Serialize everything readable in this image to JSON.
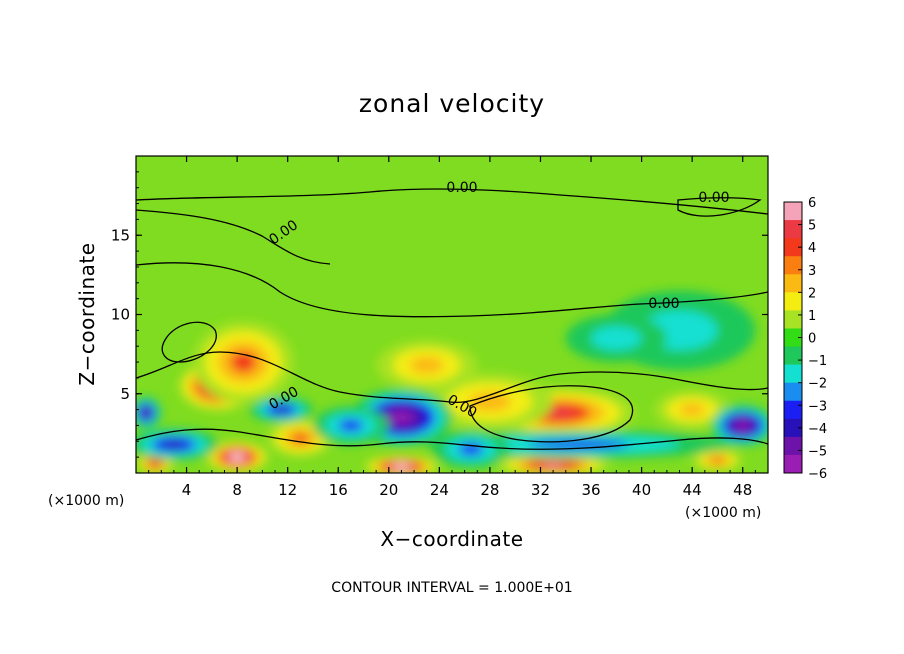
{
  "chart_data": {
    "type": "heatmap",
    "title": "zonal velocity",
    "xlabel": "X−coordinate",
    "ylabel": "Z−coordinate",
    "x_unit": "(×1000 m)",
    "y_unit": "(×1000 m)",
    "xlim": [
      0,
      50
    ],
    "ylim": [
      0,
      20
    ],
    "x_ticks": [
      4,
      8,
      12,
      16,
      20,
      24,
      28,
      32,
      36,
      40,
      44,
      48
    ],
    "y_ticks": [
      5,
      10,
      15
    ],
    "x_tick_labels": [
      "4",
      "8",
      "12",
      "16",
      "20",
      "24",
      "28",
      "32",
      "36",
      "40",
      "44",
      "48"
    ],
    "y_tick_labels": [
      "5",
      "10",
      "15"
    ],
    "colorbar": {
      "range": [
        -6,
        6
      ],
      "ticks": [
        "6",
        "5",
        "4",
        "3",
        "2",
        "1",
        "0",
        "−1",
        "−2",
        "−3",
        "−4",
        "−5",
        "−6"
      ],
      "colors": [
        "#f4a3b8",
        "#ec3a45",
        "#f3391b",
        "#fa7f10",
        "#fbb914",
        "#f4ed12",
        "#a7e224",
        "#33dd16",
        "#1ec85a",
        "#14e0d2",
        "#1a8ef0",
        "#1c1ff4",
        "#2811b8",
        "#6e13aa",
        "#9a1eb4"
      ],
      "high_color": "#ffffff"
    },
    "contour_labels": [
      "0.00",
      "0.00",
      "0.00",
      "0.00",
      "0.00",
      "0.00"
    ],
    "features": [
      {
        "kind": "max",
        "x": 6.5,
        "z": 5.5,
        "value": 7,
        "rx": 3.2,
        "rz": 1.6
      },
      {
        "kind": "max",
        "x": 8.5,
        "z": 7.0,
        "value": 4,
        "rx": 4.0,
        "rz": 2.6
      },
      {
        "kind": "max",
        "x": 13.0,
        "z": 2.2,
        "value": 3.5,
        "rx": 2.6,
        "rz": 1.2
      },
      {
        "kind": "max",
        "x": 33.5,
        "z": 3.8,
        "value": 5,
        "rx": 6.0,
        "rz": 1.6
      },
      {
        "kind": "max",
        "x": 28.0,
        "z": 4.5,
        "value": 3,
        "rx": 5.0,
        "rz": 1.8
      },
      {
        "kind": "max",
        "x": 23.0,
        "z": 6.8,
        "value": 2.5,
        "rx": 4.0,
        "rz": 1.6
      },
      {
        "kind": "max",
        "x": 44.0,
        "z": 4.0,
        "value": 3,
        "rx": 3.0,
        "rz": 1.2
      },
      {
        "kind": "max",
        "x": 1.5,
        "z": 0.6,
        "value": 5,
        "rx": 1.5,
        "rz": 0.7
      },
      {
        "kind": "max",
        "x": 8.0,
        "z": 1.0,
        "value": 7,
        "rx": 2.5,
        "rz": 1.0
      },
      {
        "kind": "max",
        "x": 21.0,
        "z": 0.4,
        "value": 7,
        "rx": 3.0,
        "rz": 0.7
      },
      {
        "kind": "max",
        "x": 33.0,
        "z": 0.5,
        "value": 6,
        "rx": 4.5,
        "rz": 0.7
      },
      {
        "kind": "max",
        "x": 46.0,
        "z": 0.8,
        "value": 4,
        "rx": 2.0,
        "rz": 0.7
      },
      {
        "kind": "min",
        "x": 21.0,
        "z": 3.5,
        "value": -6,
        "rx": 4.0,
        "rz": 1.8
      },
      {
        "kind": "min",
        "x": 3.0,
        "z": 1.8,
        "value": -4,
        "rx": 3.5,
        "rz": 1.0
      },
      {
        "kind": "min",
        "x": 11.5,
        "z": 4.0,
        "value": -3.5,
        "rx": 2.5,
        "rz": 0.8
      },
      {
        "kind": "min",
        "x": 17.0,
        "z": 3.0,
        "value": -3,
        "rx": 3.0,
        "rz": 1.2
      },
      {
        "kind": "min",
        "x": 35.0,
        "z": 1.8,
        "value": -3,
        "rx": 12.0,
        "rz": 0.9
      },
      {
        "kind": "min",
        "x": 26.5,
        "z": 1.5,
        "value": -2.5,
        "rx": 3.0,
        "rz": 1.2
      },
      {
        "kind": "min",
        "x": 48.0,
        "z": 3.0,
        "value": -6,
        "rx": 2.5,
        "rz": 1.3
      },
      {
        "kind": "min",
        "x": 0.8,
        "z": 3.8,
        "value": -5,
        "rx": 1.2,
        "rz": 1.0
      },
      {
        "kind": "min",
        "x": 43.0,
        "z": 9.0,
        "value": -1.5,
        "rx": 6.0,
        "rz": 2.5
      },
      {
        "kind": "min",
        "x": 38.0,
        "z": 8.5,
        "value": -1.2,
        "rx": 4.0,
        "rz": 1.5
      }
    ],
    "grid": false,
    "legend": "colorbar-right"
  },
  "footer": {
    "contour_interval": "CONTOUR INTERVAL = 1.000E+01"
  }
}
